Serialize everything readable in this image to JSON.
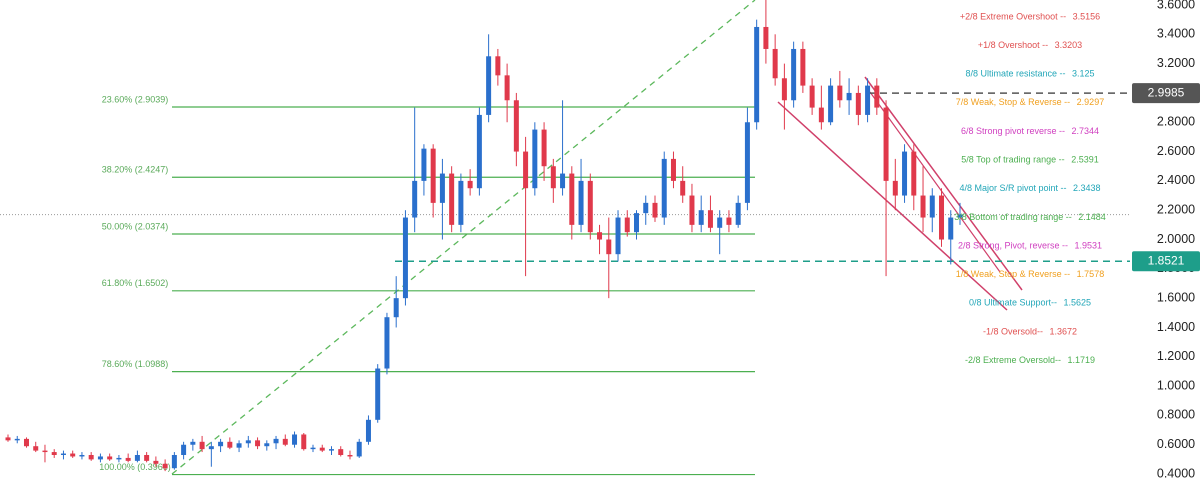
{
  "chart_data": {
    "type": "candlestick",
    "ylim": [
      0.223,
      3.634
    ],
    "yticks": [
      {
        "value": 0.4,
        "label": "0.4000"
      },
      {
        "value": 0.6,
        "label": "0.6000"
      },
      {
        "value": 0.8,
        "label": "0.8000"
      },
      {
        "value": 1.0,
        "label": "1.0000"
      },
      {
        "value": 1.2,
        "label": "1.2000"
      },
      {
        "value": 1.4,
        "label": "1.4000"
      },
      {
        "value": 1.6,
        "label": "1.6000"
      },
      {
        "value": 1.8,
        "label": "1.8000"
      },
      {
        "value": 2.0,
        "label": "2.0000"
      },
      {
        "value": 2.2,
        "label": "2.2000"
      },
      {
        "value": 2.4,
        "label": "2.4000"
      },
      {
        "value": 2.6,
        "label": "2.6000"
      },
      {
        "value": 2.8,
        "label": "2.8000"
      },
      {
        "value": 3.0,
        "label": "3.0000"
      },
      {
        "value": 3.2,
        "label": "3.2000"
      },
      {
        "value": 3.4,
        "label": "3.4000"
      },
      {
        "value": 3.6,
        "label": "3.6000"
      }
    ],
    "up_color": "#2a6fcc",
    "down_color": "#e0394b",
    "ohlc": [
      [
        0.65,
        0.67,
        0.62,
        0.63
      ],
      [
        0.63,
        0.66,
        0.61,
        0.64
      ],
      [
        0.64,
        0.65,
        0.58,
        0.59
      ],
      [
        0.59,
        0.62,
        0.55,
        0.56
      ],
      [
        0.56,
        0.6,
        0.48,
        0.55
      ],
      [
        0.55,
        0.57,
        0.51,
        0.53
      ],
      [
        0.53,
        0.56,
        0.5,
        0.54
      ],
      [
        0.54,
        0.56,
        0.51,
        0.52
      ],
      [
        0.52,
        0.55,
        0.5,
        0.53
      ],
      [
        0.53,
        0.55,
        0.49,
        0.5
      ],
      [
        0.5,
        0.54,
        0.48,
        0.52
      ],
      [
        0.52,
        0.54,
        0.49,
        0.5
      ],
      [
        0.5,
        0.53,
        0.48,
        0.51
      ],
      [
        0.51,
        0.54,
        0.48,
        0.49
      ],
      [
        0.49,
        0.56,
        0.48,
        0.53
      ],
      [
        0.53,
        0.55,
        0.48,
        0.49
      ],
      [
        0.49,
        0.52,
        0.45,
        0.47
      ],
      [
        0.47,
        0.5,
        0.42,
        0.44
      ],
      [
        0.44,
        0.55,
        0.43,
        0.53
      ],
      [
        0.53,
        0.62,
        0.5,
        0.6
      ],
      [
        0.6,
        0.64,
        0.56,
        0.62
      ],
      [
        0.62,
        0.66,
        0.55,
        0.57
      ],
      [
        0.57,
        0.62,
        0.45,
        0.59
      ],
      [
        0.59,
        0.64,
        0.55,
        0.62
      ],
      [
        0.62,
        0.65,
        0.57,
        0.58
      ],
      [
        0.58,
        0.63,
        0.55,
        0.61
      ],
      [
        0.61,
        0.66,
        0.58,
        0.63
      ],
      [
        0.63,
        0.65,
        0.57,
        0.59
      ],
      [
        0.59,
        0.63,
        0.56,
        0.61
      ],
      [
        0.61,
        0.66,
        0.57,
        0.64
      ],
      [
        0.64,
        0.67,
        0.59,
        0.6
      ],
      [
        0.6,
        0.69,
        0.58,
        0.67
      ],
      [
        0.67,
        0.68,
        0.56,
        0.57
      ],
      [
        0.57,
        0.6,
        0.55,
        0.58
      ],
      [
        0.58,
        0.6,
        0.55,
        0.56
      ],
      [
        0.56,
        0.59,
        0.53,
        0.57
      ],
      [
        0.57,
        0.59,
        0.52,
        0.53
      ],
      [
        0.53,
        0.56,
        0.5,
        0.52
      ],
      [
        0.52,
        0.64,
        0.51,
        0.62
      ],
      [
        0.62,
        0.8,
        0.6,
        0.77
      ],
      [
        0.77,
        1.15,
        0.75,
        1.12
      ],
      [
        1.12,
        1.5,
        1.08,
        1.47
      ],
      [
        1.47,
        1.75,
        1.4,
        1.6
      ],
      [
        1.6,
        2.2,
        1.55,
        2.15
      ],
      [
        2.15,
        2.9,
        2.05,
        2.4
      ],
      [
        2.4,
        2.65,
        2.3,
        2.62
      ],
      [
        2.62,
        2.65,
        2.15,
        2.25
      ],
      [
        2.25,
        2.55,
        2.0,
        2.45
      ],
      [
        2.45,
        2.5,
        2.05,
        2.1
      ],
      [
        2.1,
        2.45,
        2.05,
        2.4
      ],
      [
        2.4,
        2.48,
        2.3,
        2.35
      ],
      [
        2.35,
        2.9,
        2.3,
        2.85
      ],
      [
        2.85,
        3.4,
        2.8,
        3.25
      ],
      [
        3.25,
        3.3,
        3.05,
        3.12
      ],
      [
        3.12,
        3.2,
        2.8,
        2.95
      ],
      [
        2.95,
        3.0,
        2.5,
        2.6
      ],
      [
        2.6,
        2.7,
        1.75,
        2.35
      ],
      [
        2.35,
        2.8,
        2.3,
        2.75
      ],
      [
        2.75,
        2.8,
        2.4,
        2.5
      ],
      [
        2.5,
        2.55,
        2.25,
        2.35
      ],
      [
        2.35,
        2.95,
        2.3,
        2.45
      ],
      [
        2.45,
        2.5,
        2.0,
        2.1
      ],
      [
        2.1,
        2.55,
        2.05,
        2.4
      ],
      [
        2.4,
        2.45,
        2.0,
        2.05
      ],
      [
        2.05,
        2.1,
        1.9,
        2.0
      ],
      [
        2.0,
        2.15,
        1.6,
        1.9
      ],
      [
        1.9,
        2.2,
        1.85,
        2.15
      ],
      [
        2.15,
        2.2,
        2.02,
        2.05
      ],
      [
        2.05,
        2.2,
        2.0,
        2.18
      ],
      [
        2.18,
        2.3,
        2.1,
        2.25
      ],
      [
        2.25,
        2.3,
        2.12,
        2.15
      ],
      [
        2.15,
        2.6,
        2.1,
        2.55
      ],
      [
        2.55,
        2.6,
        2.35,
        2.4
      ],
      [
        2.4,
        2.5,
        2.25,
        2.3
      ],
      [
        2.3,
        2.38,
        2.05,
        2.1
      ],
      [
        2.1,
        2.3,
        2.05,
        2.2
      ],
      [
        2.2,
        2.3,
        2.05,
        2.08
      ],
      [
        2.08,
        2.2,
        1.9,
        2.15
      ],
      [
        2.15,
        2.2,
        2.05,
        2.1
      ],
      [
        2.1,
        2.3,
        2.08,
        2.25
      ],
      [
        2.25,
        2.9,
        2.2,
        2.8
      ],
      [
        2.8,
        3.5,
        2.75,
        3.45
      ],
      [
        3.45,
        3.65,
        3.2,
        3.3
      ],
      [
        3.3,
        3.4,
        3.05,
        3.1
      ],
      [
        3.1,
        3.2,
        2.75,
        2.95
      ],
      [
        2.95,
        3.35,
        2.9,
        3.3
      ],
      [
        3.3,
        3.35,
        3.0,
        3.05
      ],
      [
        3.05,
        3.1,
        2.85,
        2.9
      ],
      [
        2.9,
        3.05,
        2.75,
        2.8
      ],
      [
        2.8,
        3.1,
        2.78,
        3.05
      ],
      [
        3.05,
        3.15,
        2.9,
        2.95
      ],
      [
        2.95,
        3.1,
        2.85,
        3.0
      ],
      [
        3.0,
        3.05,
        2.78,
        2.85
      ],
      [
        2.85,
        3.1,
        2.8,
        3.05
      ],
      [
        3.05,
        3.1,
        2.85,
        2.9
      ],
      [
        2.9,
        2.95,
        1.75,
        2.4
      ],
      [
        2.4,
        2.55,
        2.2,
        2.3
      ],
      [
        2.3,
        2.65,
        2.25,
        2.6
      ],
      [
        2.6,
        2.65,
        2.2,
        2.3
      ],
      [
        2.3,
        2.5,
        2.05,
        2.15
      ],
      [
        2.15,
        2.35,
        2.05,
        2.3
      ],
      [
        2.3,
        2.35,
        1.95,
        2.0
      ],
      [
        2.0,
        2.2,
        1.83,
        2.15
      ],
      [
        2.15,
        2.25,
        2.1,
        2.17
      ]
    ],
    "fib_color": "#4caf50",
    "fib_levels": [
      {
        "label": "23.60% (2.9039)",
        "value": 2.9039
      },
      {
        "label": "38.20% (2.4247)",
        "value": 2.4247
      },
      {
        "label": "50.00% (2.0374)",
        "value": 2.0374
      },
      {
        "label": "61.80% (1.6502)",
        "value": 1.6502
      },
      {
        "label": "78.60% (1.0988)",
        "value": 1.0988
      },
      {
        "label": "100.00% (0.3966)",
        "value": 0.3966
      }
    ],
    "murrey_levels": [
      {
        "name": "+2/8 Extreme Overshoot -- ",
        "value": 3.5156,
        "color": "#e05050"
      },
      {
        "name": "+1/8 Overshoot -- ",
        "value": 3.3203,
        "color": "#e05050"
      },
      {
        "name": "8/8 Ultimate resistance -- ",
        "value": 3.125,
        "color": "#22a6b8"
      },
      {
        "name": "7/8 Weak, Stop & Reverse -- ",
        "value": 2.9297,
        "color": "#f0a020"
      },
      {
        "name": "6/8 Strong pivot reverse -- ",
        "value": 2.7344,
        "color": "#d040c0"
      },
      {
        "name": "5/8 Top of trading range -- ",
        "value": 2.5391,
        "color": "#4caf50"
      },
      {
        "name": "4/8 Major S/R pivot point -- ",
        "value": 2.3438,
        "color": "#22a6b8"
      },
      {
        "name": "3/8 Bottom of trading range -- ",
        "value": 2.1484,
        "color": "#4caf50"
      },
      {
        "name": "2/8 Strong, Pivot, reverse -- ",
        "value": 1.9531,
        "color": "#d040c0"
      },
      {
        "name": "1/8 Weak, Stop & Reverse -- ",
        "value": 1.7578,
        "color": "#f0a020"
      },
      {
        "name": "0/8 Ultimate Support-- ",
        "value": 1.5625,
        "color": "#22a6b8"
      },
      {
        "name": "-1/8 Oversold-- ",
        "value": 1.3672,
        "color": "#e05050"
      },
      {
        "name": "-2/8 Extreme Oversold-- ",
        "value": 1.1719,
        "color": "#4caf50"
      }
    ],
    "price_lines": [
      {
        "value": 2.9985,
        "color": "#555555"
      },
      {
        "value": 1.8521,
        "color": "#1e9e8a"
      }
    ]
  }
}
